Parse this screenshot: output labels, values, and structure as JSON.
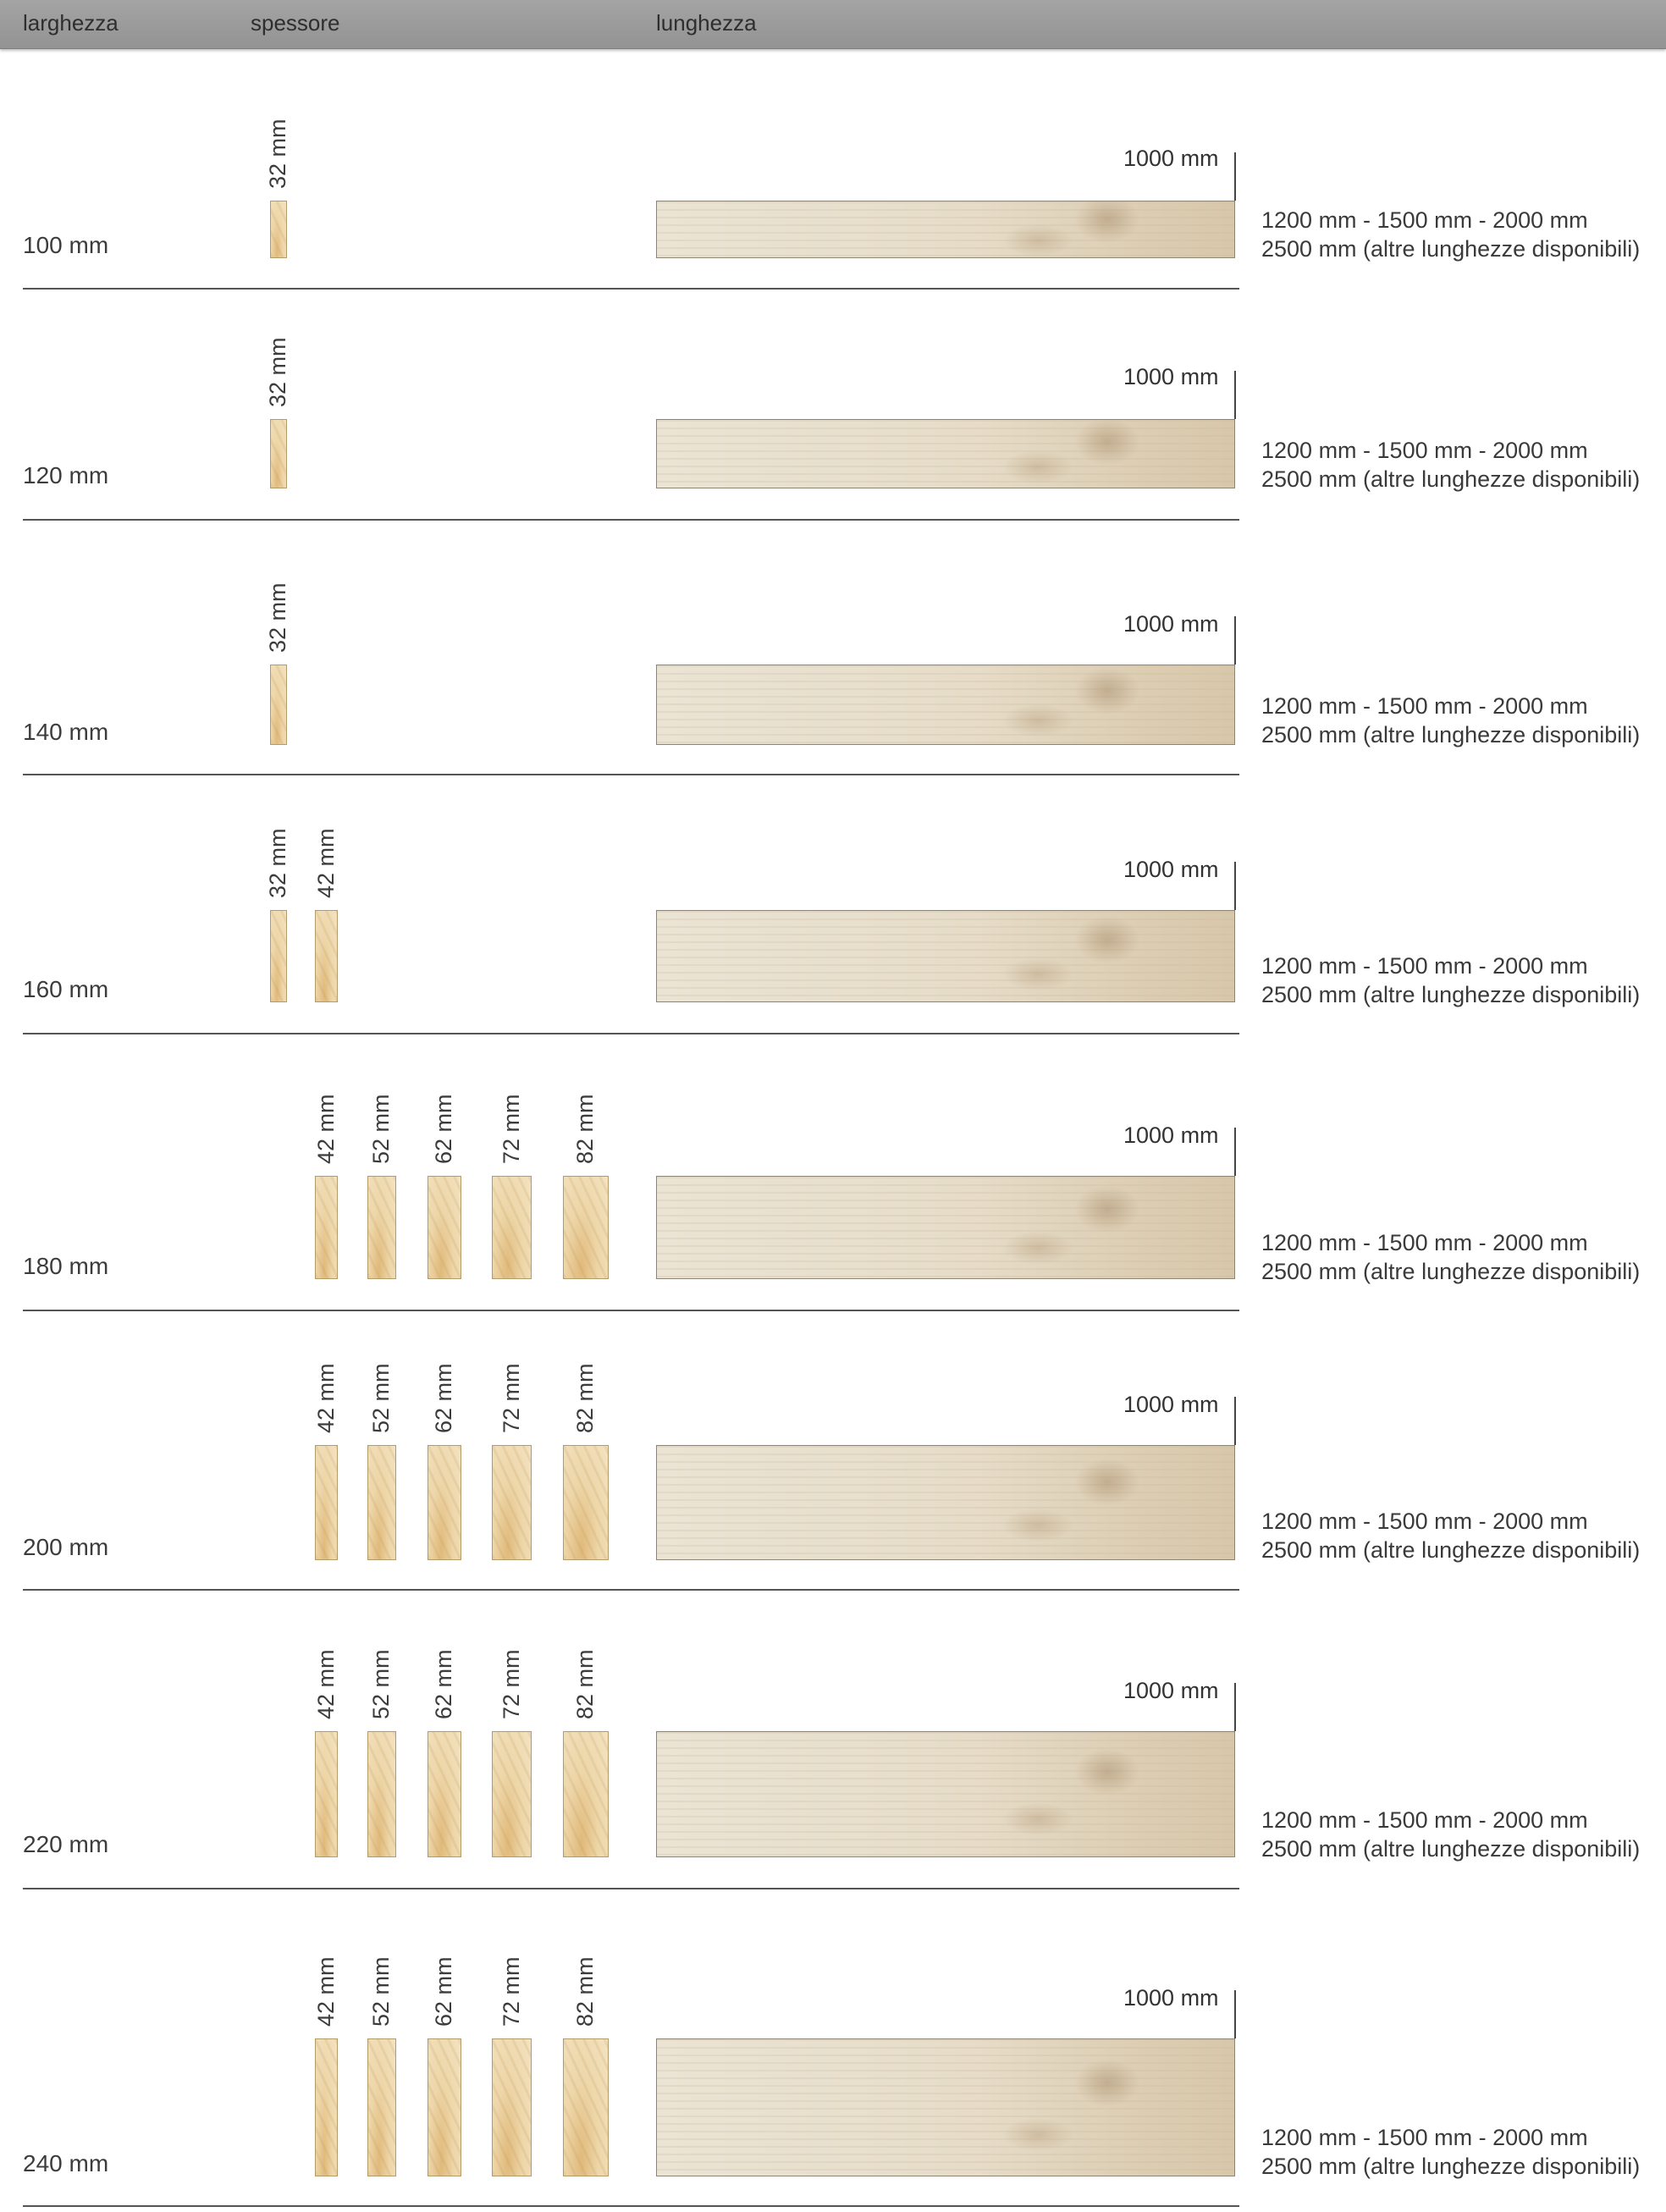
{
  "header": {
    "col_width": "larghezza",
    "col_thickness": "spessore",
    "col_length": "lunghezza"
  },
  "length_label": "1000 mm",
  "lengths_line1": "1200 mm - 1500 mm - 2000 mm",
  "lengths_line2": "2500 mm (altre lunghezze disponibili)",
  "rows": [
    {
      "width": "100 mm",
      "thicknesses": [
        "32 mm"
      ]
    },
    {
      "width": "120 mm",
      "thicknesses": [
        "32 mm"
      ]
    },
    {
      "width": "140 mm",
      "thicknesses": [
        "32 mm"
      ]
    },
    {
      "width": "160 mm",
      "thicknesses": [
        "32 mm",
        "42 mm"
      ]
    },
    {
      "width": "180 mm",
      "thicknesses": [
        "42 mm",
        "52 mm",
        "62 mm",
        "72 mm",
        "82 mm"
      ]
    },
    {
      "width": "200 mm",
      "thicknesses": [
        "42 mm",
        "52 mm",
        "62 mm",
        "72 mm",
        "82 mm"
      ]
    },
    {
      "width": "220 mm",
      "thicknesses": [
        "42 mm",
        "52 mm",
        "62 mm",
        "72 mm",
        "82 mm"
      ]
    },
    {
      "width": "240 mm",
      "thicknesses": [
        "42 mm",
        "52 mm",
        "62 mm",
        "72 mm",
        "82 mm"
      ]
    }
  ]
}
